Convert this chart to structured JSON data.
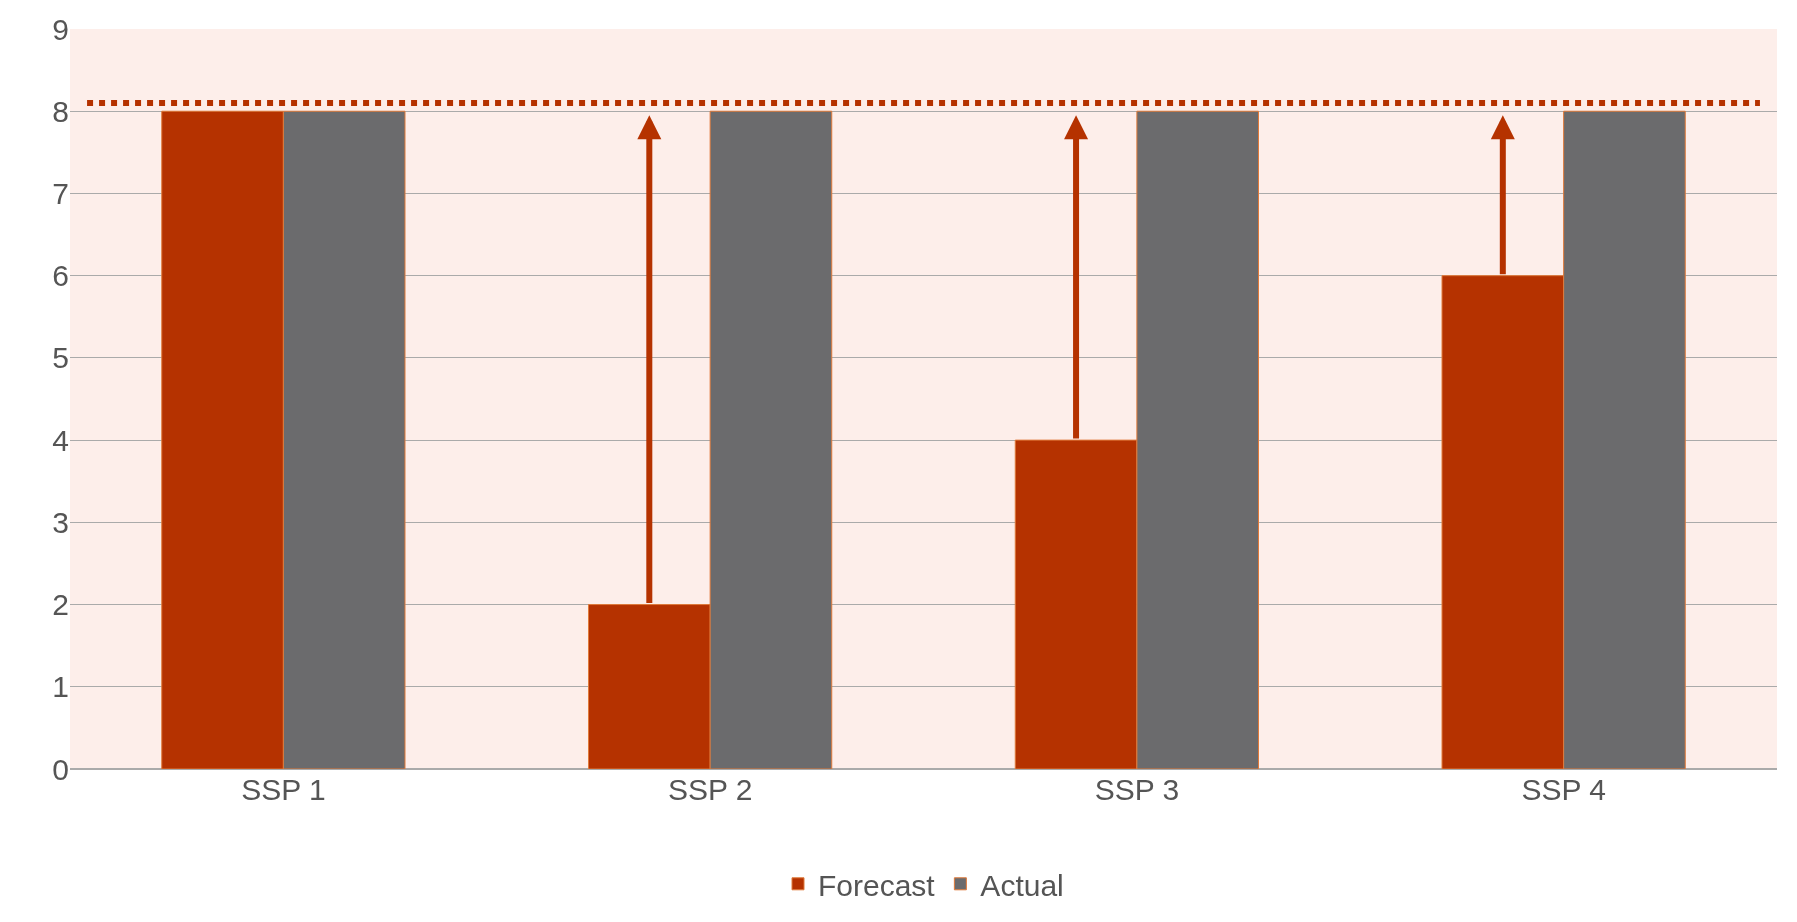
{
  "chart_data": {
    "type": "bar",
    "categories": [
      "SSP 1",
      "SSP 2",
      "SSP 3",
      "SSP 4"
    ],
    "series": [
      {
        "name": "Forecast",
        "color": "#b53200",
        "values": [
          8,
          2,
          4,
          6
        ]
      },
      {
        "name": "Actual",
        "color": "#6b6b6d",
        "values": [
          8,
          8,
          8,
          8
        ]
      }
    ],
    "ylim": [
      0,
      9
    ],
    "yticks": [
      0,
      1,
      2,
      3,
      4,
      5,
      6,
      7,
      8,
      9
    ],
    "ref_lines": [
      {
        "axis": "y",
        "value": 8.1,
        "color": "#b53200",
        "line_style": "dotted"
      }
    ],
    "grid": "y",
    "legend": "bottom"
  }
}
